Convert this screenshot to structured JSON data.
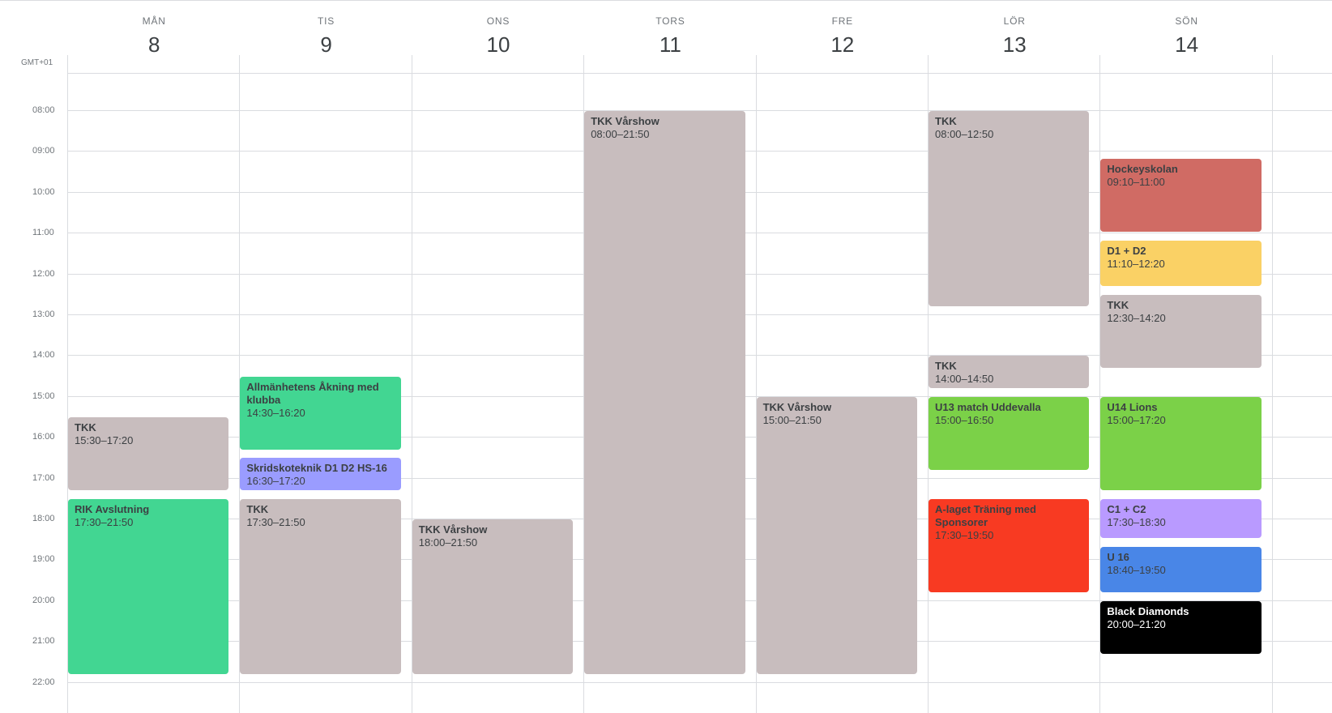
{
  "timezone": "GMT+01",
  "days": [
    {
      "name": "MÅN",
      "date": "8"
    },
    {
      "name": "TIS",
      "date": "9"
    },
    {
      "name": "ONS",
      "date": "10"
    },
    {
      "name": "TORS",
      "date": "11"
    },
    {
      "name": "FRE",
      "date": "12"
    },
    {
      "name": "LÖR",
      "date": "13"
    },
    {
      "name": "SÖN",
      "date": "14"
    }
  ],
  "hours": [
    "08:00",
    "09:00",
    "10:00",
    "11:00",
    "12:00",
    "13:00",
    "14:00",
    "15:00",
    "16:00",
    "17:00",
    "18:00",
    "19:00",
    "20:00",
    "21:00",
    "22:00"
  ],
  "colors": {
    "grey": "#c8bdbe",
    "green": "#42d692",
    "periwinkle": "#9a9cff",
    "red_muted": "#d06b64",
    "yellow": "#fad165",
    "lime": "#7bd148",
    "red": "#f83a22",
    "lavender": "#b99aff",
    "blue": "#4986e7",
    "black": "#000000"
  },
  "events": [
    {
      "day": 0,
      "title": "TKK",
      "time": "15:30–17:20",
      "start": 15.5,
      "end": 17.33,
      "color": "#c8bdbe"
    },
    {
      "day": 0,
      "title": "RIK Avslutning",
      "time": "17:30–21:50",
      "start": 17.5,
      "end": 21.83,
      "color": "#42d692"
    },
    {
      "day": 1,
      "title": "Allmänhetens Åkning med klubba",
      "time": "14:30–16:20",
      "start": 14.5,
      "end": 16.33,
      "color": "#42d692"
    },
    {
      "day": 1,
      "title": "Skridskoteknik D1 D2 HS-16",
      "time": "16:30–17:20",
      "start": 16.5,
      "end": 17.33,
      "color": "#9a9cff"
    },
    {
      "day": 1,
      "title": "TKK",
      "time": "17:30–21:50",
      "start": 17.5,
      "end": 21.83,
      "color": "#c8bdbe"
    },
    {
      "day": 2,
      "title": "TKK Vårshow",
      "time": "18:00–21:50",
      "start": 18.0,
      "end": 21.83,
      "color": "#c8bdbe"
    },
    {
      "day": 3,
      "title": "TKK Vårshow",
      "time": "08:00–21:50",
      "start": 8.0,
      "end": 21.83,
      "color": "#c8bdbe"
    },
    {
      "day": 4,
      "title": "TKK Vårshow",
      "time": "15:00–21:50",
      "start": 15.0,
      "end": 21.83,
      "color": "#c8bdbe"
    },
    {
      "day": 5,
      "title": "TKK",
      "time": "08:00–12:50",
      "start": 8.0,
      "end": 12.83,
      "color": "#c8bdbe"
    },
    {
      "day": 5,
      "title": "TKK",
      "time": "14:00–14:50",
      "start": 14.0,
      "end": 14.83,
      "color": "#c8bdbe"
    },
    {
      "day": 5,
      "title": "U13 match Uddevalla",
      "time": "15:00–16:50",
      "start": 15.0,
      "end": 16.83,
      "color": "#7bd148"
    },
    {
      "day": 5,
      "title": "A-laget Träning med Sponsorer",
      "time": "17:30–19:50",
      "start": 17.5,
      "end": 19.83,
      "color": "#f83a22"
    },
    {
      "day": 6,
      "title": "Hockeyskolan",
      "time": "09:10–11:00",
      "start": 9.17,
      "end": 11.0,
      "color": "#d06b64"
    },
    {
      "day": 6,
      "title": "D1 + D2",
      "time": "11:10–12:20",
      "start": 11.17,
      "end": 12.33,
      "color": "#fad165"
    },
    {
      "day": 6,
      "title": "TKK",
      "time": "12:30–14:20",
      "start": 12.5,
      "end": 14.33,
      "color": "#c8bdbe"
    },
    {
      "day": 6,
      "title": "U14 Lions",
      "time": "15:00–17:20",
      "start": 15.0,
      "end": 17.33,
      "color": "#7bd148"
    },
    {
      "day": 6,
      "title": "C1 + C2",
      "time": "17:30–18:30",
      "start": 17.5,
      "end": 18.5,
      "color": "#b99aff"
    },
    {
      "day": 6,
      "title": "U 16",
      "time": "18:40–19:50",
      "start": 18.67,
      "end": 19.83,
      "color": "#4986e7"
    },
    {
      "day": 6,
      "title": "Black Diamonds",
      "time": "20:00–21:20",
      "start": 20.0,
      "end": 21.33,
      "color": "#000000",
      "dark": true
    }
  ]
}
